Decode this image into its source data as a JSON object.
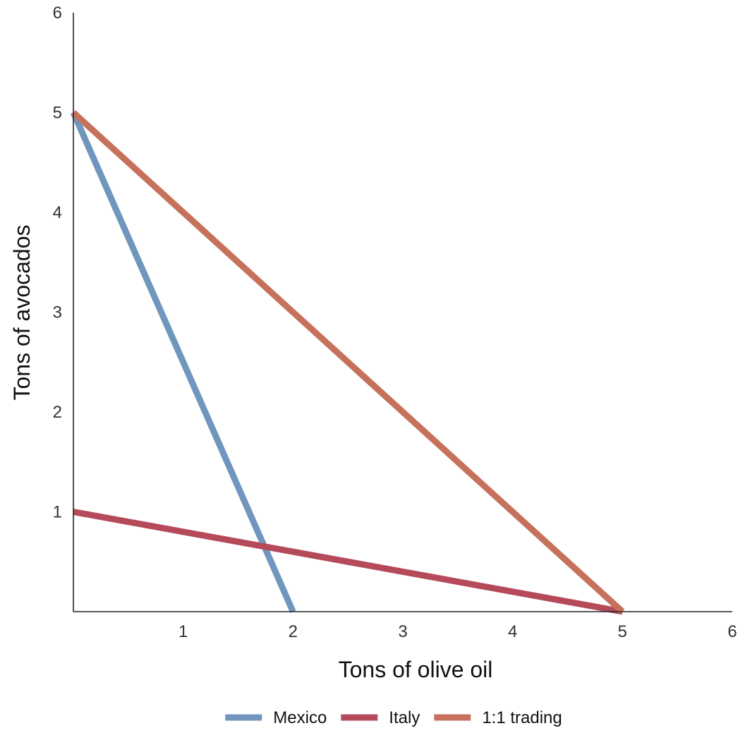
{
  "chart_data": {
    "type": "line",
    "title": "",
    "xlabel": "Tons of olive oil",
    "ylabel": "Tons of avocados",
    "xlim": [
      0,
      6
    ],
    "ylim": [
      0,
      6
    ],
    "x_ticks": [
      "1",
      "2",
      "3",
      "4",
      "5",
      "6"
    ],
    "y_ticks": [
      "1",
      "2",
      "3",
      "4",
      "5",
      "6"
    ],
    "grid": false,
    "legend_position": "bottom-center",
    "series": [
      {
        "name": "Mexico",
        "color": "#7096BE",
        "points": [
          [
            0,
            5
          ],
          [
            2,
            0
          ]
        ]
      },
      {
        "name": "Italy",
        "color": "#B54A5A",
        "points": [
          [
            0,
            1
          ],
          [
            5,
            0
          ]
        ]
      },
      {
        "name": "1:1 trading",
        "color": "#C5715B",
        "points": [
          [
            0,
            5
          ],
          [
            5,
            0
          ]
        ]
      }
    ]
  }
}
